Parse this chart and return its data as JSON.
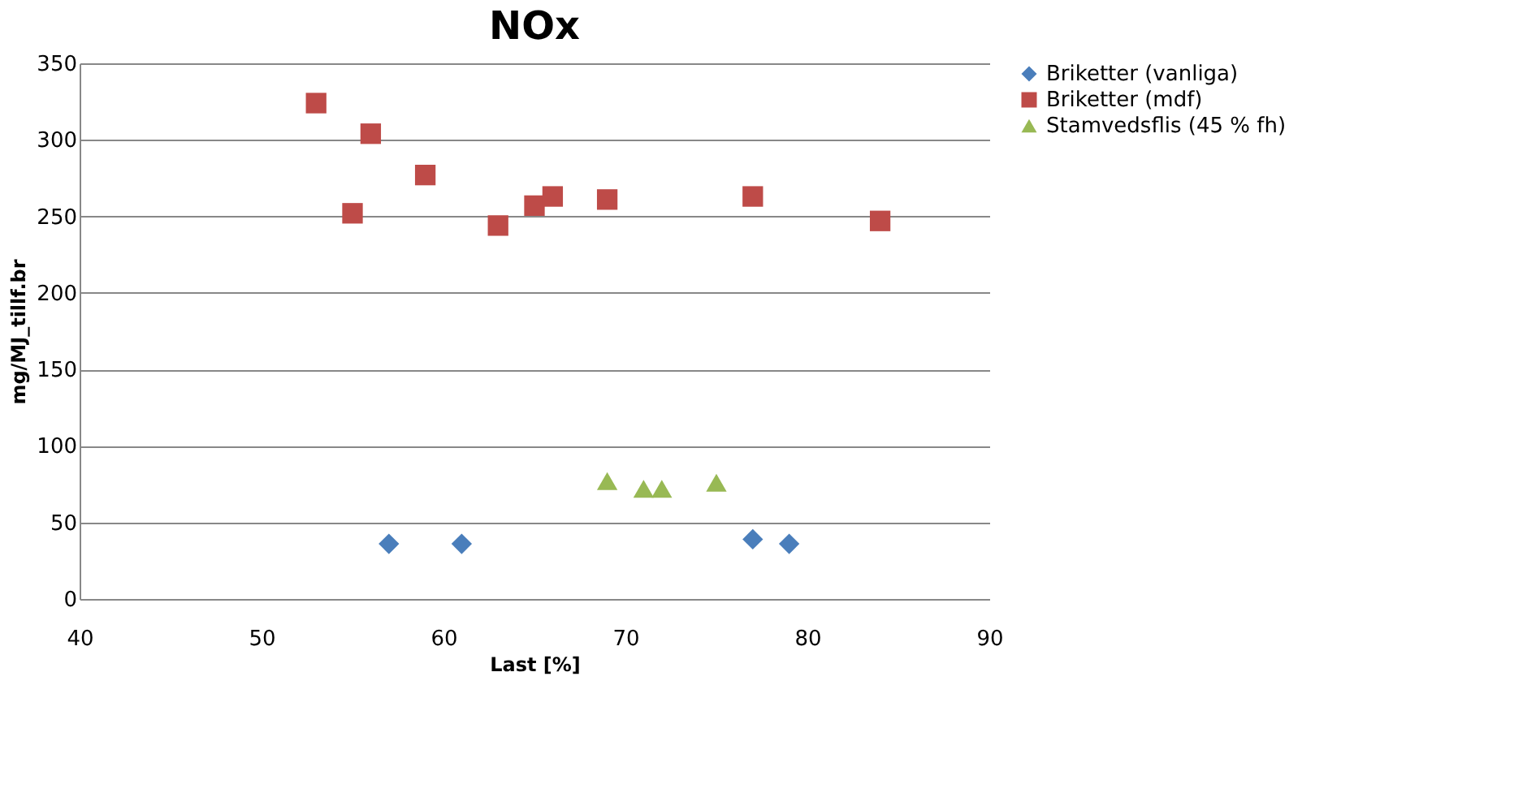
{
  "chart_data": {
    "type": "scatter",
    "title": "NOx",
    "xlabel": "Last [%]",
    "ylabel": "mg/MJ_tillf.br",
    "xlim": [
      40,
      90
    ],
    "xticks": [
      40,
      50,
      60,
      70,
      80,
      90
    ],
    "ylim": [
      0,
      350
    ],
    "yticks": [
      0,
      50,
      100,
      150,
      200,
      250,
      300,
      350
    ],
    "grid": "y",
    "legend": "right",
    "series": [
      {
        "name": "Briketter (vanliga)",
        "color": "#4a7ebb",
        "marker": "diamond",
        "x": [
          57,
          61,
          77,
          79
        ],
        "values": [
          36,
          36,
          39,
          36
        ]
      },
      {
        "name": "Briketter (mdf)",
        "color": "#be4b48",
        "marker": "square",
        "x": [
          53,
          55,
          56,
          59,
          63,
          65,
          66,
          69,
          77,
          84
        ],
        "values": [
          324,
          252,
          304,
          277,
          244,
          257,
          263,
          261,
          263,
          247
        ]
      },
      {
        "name": "Stamvedsflis (45 % fh)",
        "color": "#98b954",
        "marker": "triangle",
        "x": [
          69,
          71,
          72,
          75
        ],
        "values": [
          77,
          72,
          72,
          76
        ]
      }
    ]
  }
}
